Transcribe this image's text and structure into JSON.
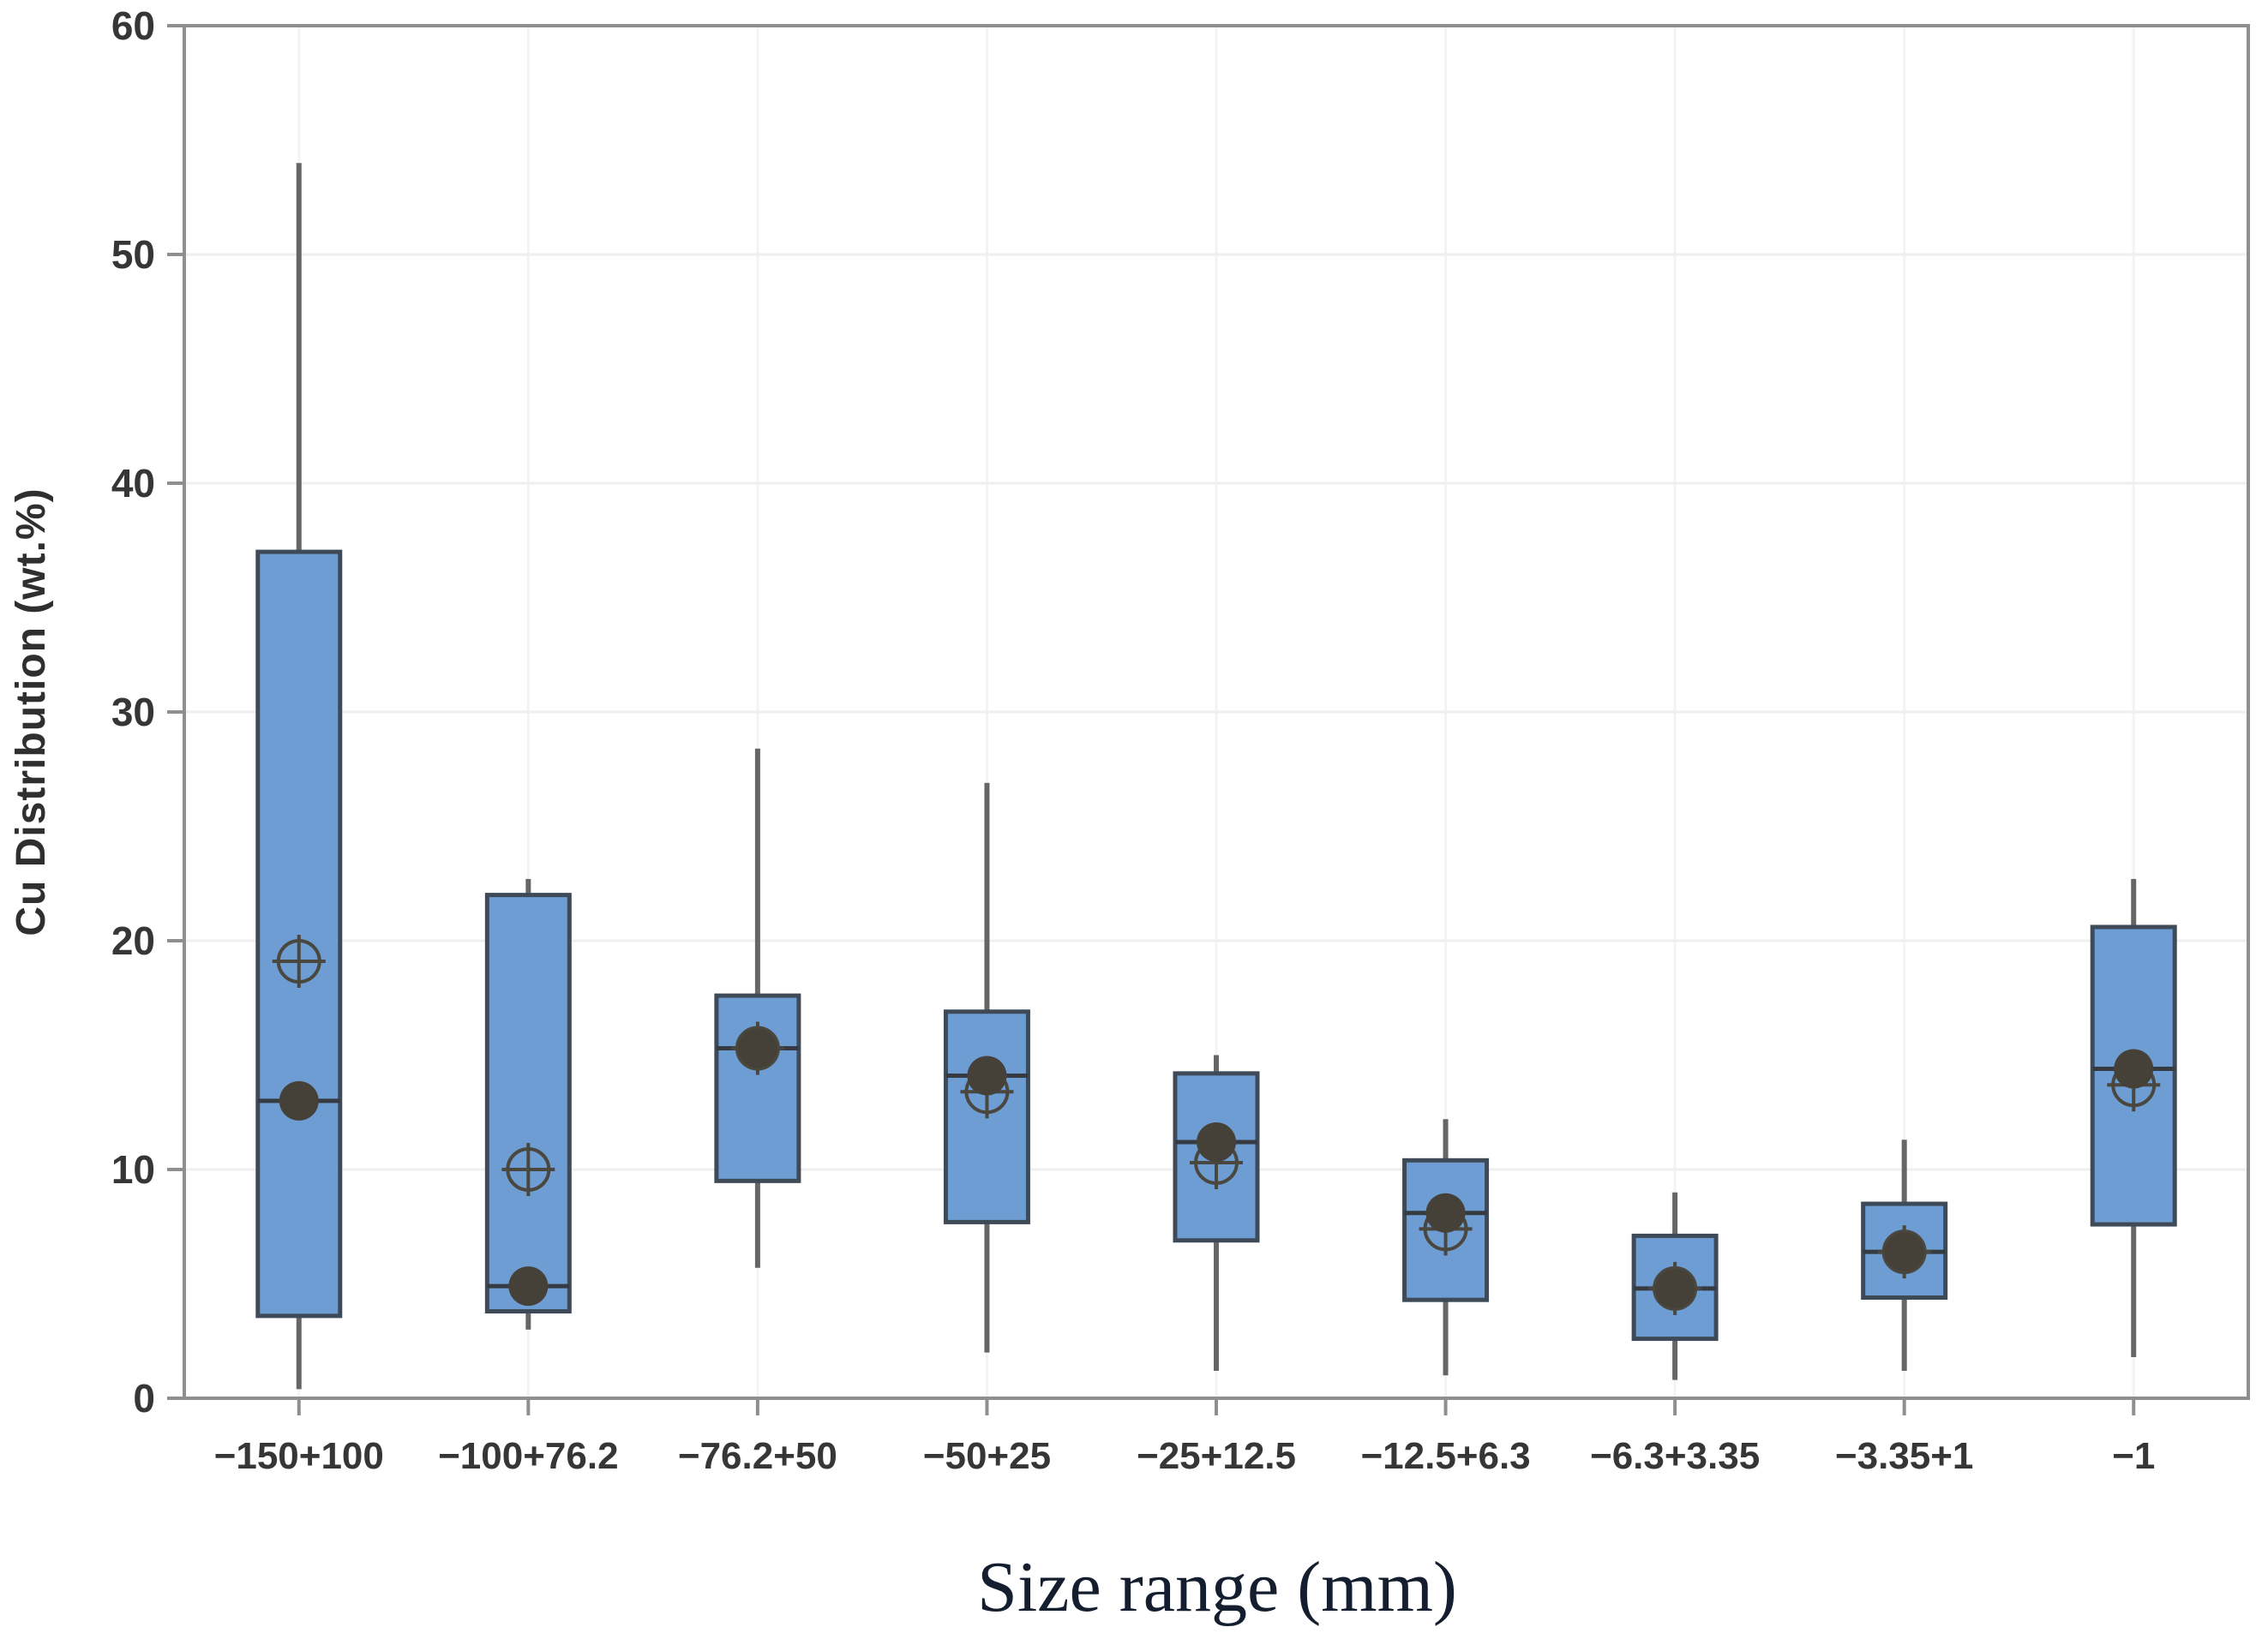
{
  "figure": {
    "background": "#ffffff",
    "xlabel": "Size range (mm)",
    "ylabel": "Cu Distribution (wt.%)"
  },
  "chart_data": {
    "type": "box",
    "title": "",
    "xlabel": "Size range (mm)",
    "ylabel": "Cu Distribution (wt.%)",
    "ylim": [
      0,
      60
    ],
    "yticks": [
      0,
      10,
      20,
      30,
      40,
      50,
      60
    ],
    "grid": {
      "horizontal": true,
      "vertical": true
    },
    "legend": "none",
    "categories": [
      "−150+100",
      "−100+76.2",
      "−76.2+50",
      "−50+25",
      "−25+12.5",
      "−12.5+6.3",
      "−6.3+3.35",
      "−3.35+1",
      "−1"
    ],
    "boxes": [
      {
        "category": "−150+100",
        "whisker_low": 0.4,
        "q1": 3.6,
        "median": 13.0,
        "q3": 37.0,
        "whisker_high": 54.0,
        "mean": 19.1
      },
      {
        "category": "−100+76.2",
        "whisker_low": 3.0,
        "q1": 3.8,
        "median": 4.9,
        "q3": 22.0,
        "whisker_high": 22.7,
        "mean": 10.0
      },
      {
        "category": "−76.2+50",
        "whisker_low": 5.7,
        "q1": 9.5,
        "median": 15.3,
        "q3": 17.6,
        "whisker_high": 28.4,
        "mean": 15.3
      },
      {
        "category": "−50+25",
        "whisker_low": 2.0,
        "q1": 7.7,
        "median": 14.1,
        "q3": 16.9,
        "whisker_high": 26.9,
        "mean": 13.4
      },
      {
        "category": "−25+12.5",
        "whisker_low": 1.2,
        "q1": 6.9,
        "median": 11.2,
        "q3": 14.2,
        "whisker_high": 15.0,
        "mean": 10.3
      },
      {
        "category": "−12.5+6.3",
        "whisker_low": 1.0,
        "q1": 4.3,
        "median": 8.1,
        "q3": 10.4,
        "whisker_high": 12.2,
        "mean": 7.4
      },
      {
        "category": "−6.3+3.35",
        "whisker_low": 0.8,
        "q1": 2.6,
        "median": 4.8,
        "q3": 7.1,
        "whisker_high": 9.0,
        "mean": 4.8
      },
      {
        "category": "−3.35+1",
        "whisker_low": 1.2,
        "q1": 4.4,
        "median": 6.4,
        "q3": 8.5,
        "whisker_high": 11.3,
        "mean": 6.4
      },
      {
        "category": "−1",
        "whisker_low": 1.8,
        "q1": 7.6,
        "median": 14.4,
        "q3": 20.6,
        "whisker_high": 22.7,
        "mean": 13.7
      }
    ],
    "markers": {
      "median_dot": "filled dark circle centered on median line",
      "mean": "circle-plus crosshair marker"
    }
  },
  "style": {
    "box_fill": "#6d9dd3",
    "box_border": "#3f4a58",
    "whisker": "#666666",
    "median_line": "#363b42",
    "median_dot": "#454139",
    "mean_marker": "#4a473f",
    "frame": "#8f8f8f",
    "gridline_h": "#efefef",
    "gridline_v": "#f3f3f3",
    "tick_color": "#8f8f8f"
  }
}
